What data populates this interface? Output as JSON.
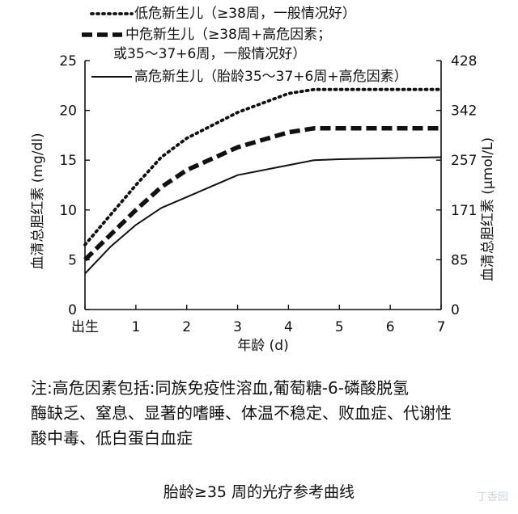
{
  "chart_data": {
    "type": "line",
    "xlabel": "年龄 (d)",
    "ylabel": "血清总胆红素 (mg/dl)",
    "y2label": "血清总胆红素 (μmol/L)",
    "xlim": [
      0,
      7
    ],
    "ylim": [
      0,
      25
    ],
    "x_ticks": [
      "出生",
      "1",
      "2",
      "3",
      "4",
      "5",
      "6",
      "7"
    ],
    "y_ticks": [
      "0",
      "5",
      "10",
      "15",
      "20",
      "25"
    ],
    "y2_ticks": [
      "0",
      "85",
      "171",
      "257",
      "342",
      "428"
    ],
    "legend_position": "top",
    "grid": false,
    "series": [
      {
        "name": "低危新生儿（≥38周，一般情况好）",
        "style": "dotted",
        "x": [
          0,
          0.5,
          1,
          1.5,
          2,
          3,
          4,
          4.5,
          5,
          6,
          7
        ],
        "y": [
          6.5,
          9.5,
          12.5,
          15.3,
          17.2,
          19.8,
          21.7,
          22.1,
          22.1,
          22.1,
          22.1
        ]
      },
      {
        "name": "中危新生儿（≥38周+高危因素；或35～37+6周，一般情况好）",
        "style": "dashed",
        "x": [
          0,
          0.5,
          1,
          1.5,
          2,
          3,
          4,
          4.5,
          5,
          6,
          7
        ],
        "y": [
          5.0,
          7.5,
          10.0,
          12.3,
          14.0,
          16.3,
          17.8,
          18.2,
          18.2,
          18.2,
          18.2
        ]
      },
      {
        "name": "高危新生儿（胎龄35～37+6周+高危因素）",
        "style": "solid",
        "x": [
          0,
          0.5,
          1,
          1.5,
          2,
          3,
          4,
          4.5,
          5,
          6,
          7
        ],
        "y": [
          3.6,
          6.3,
          8.5,
          10.2,
          11.3,
          13.5,
          14.5,
          15.0,
          15.1,
          15.2,
          15.3
        ]
      }
    ]
  },
  "note": {
    "line1": "注:高危因素包括:同族免疫性溶血,葡萄糖-6-磷酸脱氢",
    "line2": "酶缺乏、窒息、显著的嗜睡、体温不稳定、败血症、代谢性",
    "line3": "酸中毒、低白蛋白血症"
  },
  "caption": "胎龄≥35 周的光疗参考曲线",
  "watermark": "丁香园"
}
